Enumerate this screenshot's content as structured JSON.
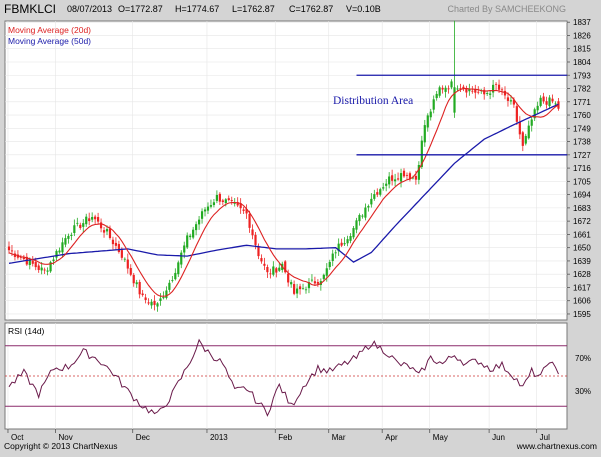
{
  "header": {
    "symbol": "FBMKLCI",
    "date": "08/07/2013",
    "open": "O=1772.87",
    "high": "H=1774.67",
    "low": "L=1762.87",
    "close": "C=1762.87",
    "volume": "V=0.10B",
    "credit": "Charted By SAMCHEEKONG"
  },
  "legend": {
    "ma20": "Moving Average (20d)",
    "ma50": "Moving Average (50d)"
  },
  "annotation": "Distribution Area",
  "rsi": {
    "label": "RSI (14d)",
    "upper_label": "70%",
    "lower_label": "30%"
  },
  "footer": {
    "copyright": "Copyright © 2013 ChartNexus",
    "website": "www.chartnexus.com"
  },
  "colors": {
    "up": "#22aa22",
    "down": "#ee2222",
    "ma20": "#dd2222",
    "ma50": "#1a1aaa",
    "rsi": "#6a1a4a",
    "rsi_band": "#8b2b6b",
    "distribution_line": "#1a1aaa"
  },
  "chart_data": {
    "type": "candlestick",
    "x_labels": [
      "Oct",
      "Nov",
      "Dec",
      "2013",
      "Feb",
      "Mar",
      "Apr",
      "May",
      "Jun",
      "Jul"
    ],
    "y_ticks": [
      1595,
      1606,
      1617,
      1628,
      1639,
      1650,
      1661,
      1672,
      1683,
      1694,
      1705,
      1716,
      1727,
      1738,
      1749,
      1760,
      1771,
      1782,
      1793,
      1804,
      1815,
      1826,
      1837
    ],
    "ylim": [
      1590,
      1838
    ],
    "distribution_lines": [
      1793,
      1727
    ],
    "rsi_levels": [
      70,
      30
    ],
    "rsi_ylim": [
      15,
      85
    ],
    "anchors": [
      [
        0,
        1648
      ],
      [
        12,
        1630
      ],
      [
        20,
        1662
      ],
      [
        28,
        1676
      ],
      [
        33,
        1662
      ],
      [
        38,
        1644
      ],
      [
        45,
        1608
      ],
      [
        50,
        1602
      ],
      [
        55,
        1626
      ],
      [
        60,
        1657
      ],
      [
        66,
        1682
      ],
      [
        70,
        1692
      ],
      [
        74,
        1687
      ],
      [
        80,
        1678
      ],
      [
        84,
        1645
      ],
      [
        87,
        1628
      ],
      [
        92,
        1636
      ],
      [
        96,
        1612
      ],
      [
        100,
        1618
      ],
      [
        106,
        1626
      ],
      [
        110,
        1648
      ],
      [
        116,
        1666
      ],
      [
        122,
        1692
      ],
      [
        128,
        1707
      ],
      [
        133,
        1712
      ],
      [
        137,
        1707
      ],
      [
        140,
        1752
      ],
      [
        145,
        1782
      ],
      [
        150,
        1786
      ],
      [
        155,
        1781
      ],
      [
        160,
        1777
      ],
      [
        164,
        1784
      ],
      [
        170,
        1766
      ],
      [
        173,
        1733
      ],
      [
        176,
        1756
      ],
      [
        179,
        1772
      ],
      [
        183,
        1771
      ],
      [
        185,
        1766
      ]
    ],
    "ma50_anchors": [
      [
        0,
        1637
      ],
      [
        20,
        1645
      ],
      [
        40,
        1649
      ],
      [
        50,
        1644
      ],
      [
        60,
        1643
      ],
      [
        70,
        1648
      ],
      [
        80,
        1652
      ],
      [
        90,
        1649
      ],
      [
        100,
        1649
      ],
      [
        110,
        1650
      ],
      [
        116,
        1638
      ],
      [
        122,
        1646
      ],
      [
        130,
        1668
      ],
      [
        140,
        1694
      ],
      [
        150,
        1720
      ],
      [
        160,
        1740
      ],
      [
        170,
        1752
      ],
      [
        185,
        1769
      ]
    ],
    "rsi_anchors": [
      [
        0,
        43
      ],
      [
        5,
        52
      ],
      [
        10,
        38
      ],
      [
        15,
        55
      ],
      [
        20,
        56
      ],
      [
        25,
        66
      ],
      [
        30,
        61
      ],
      [
        35,
        52
      ],
      [
        40,
        40
      ],
      [
        45,
        30
      ],
      [
        50,
        24
      ],
      [
        55,
        38
      ],
      [
        60,
        56
      ],
      [
        64,
        72
      ],
      [
        67,
        66
      ],
      [
        72,
        58
      ],
      [
        76,
        40
      ],
      [
        80,
        42
      ],
      [
        84,
        32
      ],
      [
        87,
        26
      ],
      [
        91,
        44
      ],
      [
        95,
        30
      ],
      [
        100,
        46
      ],
      [
        104,
        55
      ],
      [
        108,
        53
      ],
      [
        112,
        57
      ],
      [
        117,
        62
      ],
      [
        122,
        72
      ],
      [
        127,
        66
      ],
      [
        131,
        58
      ],
      [
        135,
        56
      ],
      [
        138,
        50
      ],
      [
        142,
        62
      ],
      [
        146,
        58
      ],
      [
        150,
        64
      ],
      [
        154,
        58
      ],
      [
        158,
        60
      ],
      [
        162,
        55
      ],
      [
        166,
        57
      ],
      [
        170,
        50
      ],
      [
        173,
        42
      ],
      [
        176,
        53
      ],
      [
        179,
        49
      ],
      [
        182,
        61
      ],
      [
        185,
        50
      ]
    ],
    "candle_count": 186
  }
}
